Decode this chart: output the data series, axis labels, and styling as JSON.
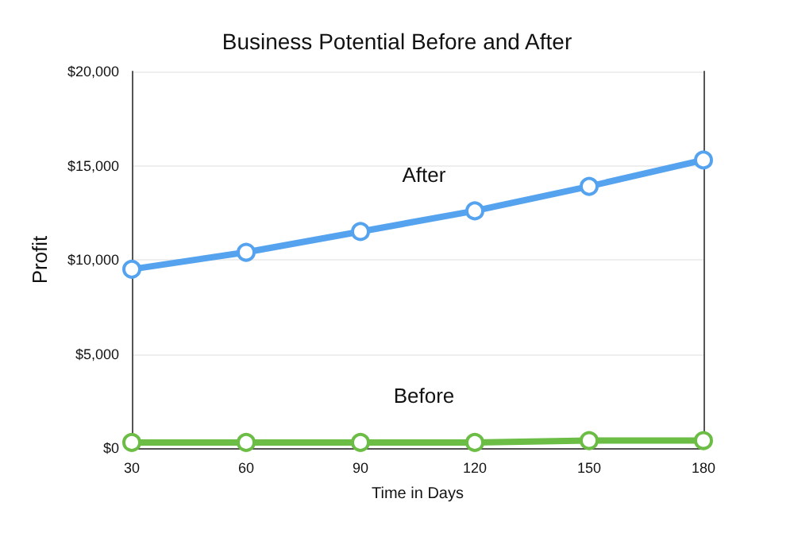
{
  "chart_data": {
    "type": "line",
    "title": "Business Potential Before and After",
    "xlabel": "Time in Days",
    "ylabel": "Profit",
    "categories": [
      "30",
      "60",
      "90",
      "120",
      "150",
      "180"
    ],
    "series": [
      {
        "name": "After",
        "color": "#55a3ef",
        "values": [
          9500,
          10400,
          11500,
          12600,
          13900,
          15300
        ]
      },
      {
        "name": "Before",
        "color": "#6bbd45",
        "values": [
          300,
          300,
          300,
          300,
          400,
          400
        ]
      }
    ],
    "ylim": [
      0,
      20000
    ],
    "yticks": [
      {
        "value": 0,
        "label": "$0"
      },
      {
        "value": 5000,
        "label": "$5,000"
      },
      {
        "value": 10000,
        "label": "$10,000"
      },
      {
        "value": 15000,
        "label": "$15,000"
      },
      {
        "value": 20000,
        "label": "$20,000"
      }
    ],
    "grid": "y",
    "legend": false,
    "marker": "circle",
    "line_style": "solid"
  }
}
